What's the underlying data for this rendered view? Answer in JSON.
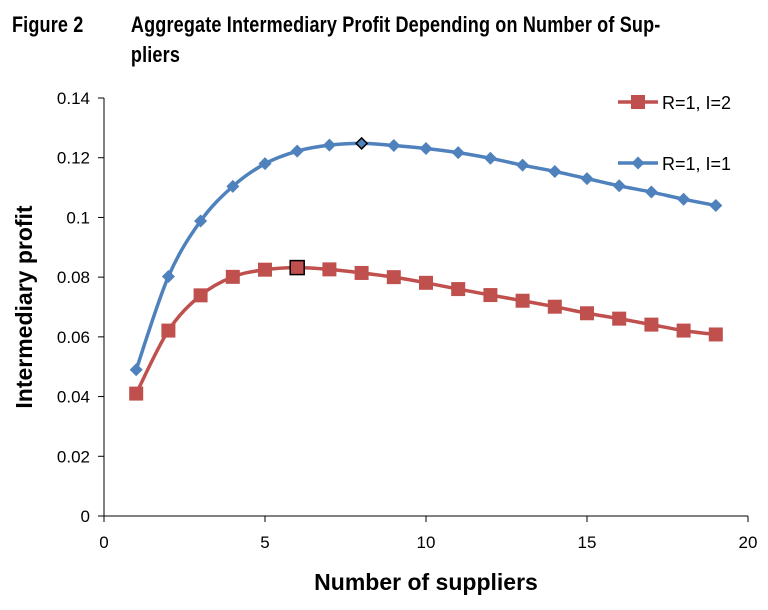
{
  "figure": {
    "label": "Figure 2",
    "title_line1": "Aggregate Intermediary Profit Depending on Number of Sup-",
    "title_line2": "pliers"
  },
  "chart_data": {
    "type": "line",
    "title": "Aggregate Intermediary Profit Depending on Number of Suppliers",
    "xlabel": "Number of suppliers",
    "ylabel": "Intermediary profit",
    "xlim": [
      0,
      20
    ],
    "ylim": [
      0,
      0.14
    ],
    "xticks": [
      0,
      5,
      10,
      15,
      20
    ],
    "xtick_labels": [
      "0",
      "5",
      "10",
      "15",
      "20"
    ],
    "yticks": [
      0,
      0.02,
      0.04,
      0.06,
      0.08,
      0.1,
      0.12,
      0.14
    ],
    "ytick_labels": [
      "0",
      "0.02",
      "0.04",
      "0.06",
      "0.08",
      "0.1",
      "0.12",
      "0.14"
    ],
    "grid": false,
    "legend_position": "top-right",
    "series": [
      {
        "name": "R=1, I=2",
        "color": "#c0504d",
        "marker": "square",
        "x": [
          1,
          2,
          3,
          4,
          5,
          6,
          7,
          8,
          9,
          10,
          11,
          12,
          13,
          14,
          15,
          16,
          17,
          18,
          19
        ],
        "y": [
          0.041,
          0.0621,
          0.0739,
          0.0801,
          0.0825,
          0.0832,
          0.0826,
          0.0814,
          0.08,
          0.0781,
          0.076,
          0.074,
          0.0721,
          0.0701,
          0.0679,
          0.0661,
          0.0641,
          0.0621,
          0.0608
        ],
        "highlight_x": 6
      },
      {
        "name": "R=1, I=1",
        "color": "#4f81bd",
        "marker": "diamond",
        "x": [
          1,
          2,
          3,
          4,
          5,
          6,
          7,
          8,
          9,
          10,
          11,
          12,
          13,
          14,
          15,
          16,
          17,
          18,
          19
        ],
        "y": [
          0.049,
          0.0802,
          0.0988,
          0.1104,
          0.118,
          0.1222,
          0.1242,
          0.1248,
          0.1241,
          0.1231,
          0.1217,
          0.1198,
          0.1175,
          0.1154,
          0.113,
          0.1106,
          0.1085,
          0.1061,
          0.104
        ],
        "highlight_x": 8
      }
    ]
  }
}
